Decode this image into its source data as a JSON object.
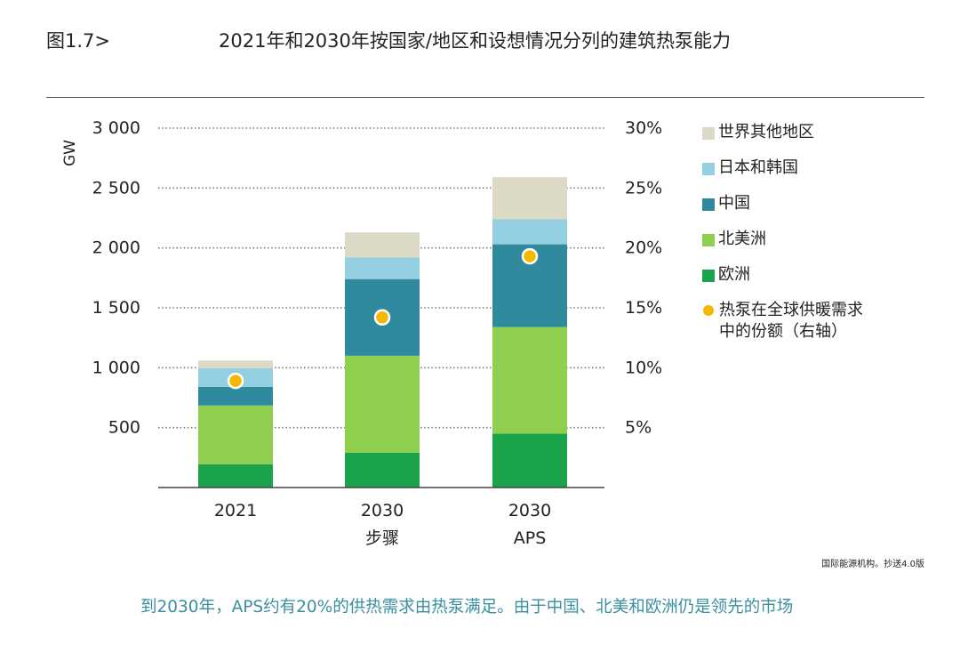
{
  "figure": {
    "number": "图1.7>",
    "title": "2021年和2030年按国家/地区和设想情况分列的建筑热泵能力",
    "source": "国际能源机构。抄送4.0版",
    "caption": "到2030年，APS约有20%的供热需求由热泵满足。由于中国、北美和欧洲仍是领先的市场"
  },
  "chart_data": {
    "type": "bar",
    "stacked": true,
    "categories": [
      "2021",
      "2030\n步骤",
      "2030\nAPS"
    ],
    "series": [
      {
        "name": "欧洲",
        "color": "#1aa34a",
        "values": [
          195,
          290,
          450
        ]
      },
      {
        "name": "北美洲",
        "color": "#8fcf4f",
        "values": [
          490,
          810,
          890
        ]
      },
      {
        "name": "中国",
        "color": "#2f8a9e",
        "values": [
          155,
          640,
          690
        ]
      },
      {
        "name": "日本和韩国",
        "color": "#93cfe0",
        "values": [
          155,
          180,
          210
        ]
      },
      {
        "name": "世界其他地区",
        "color": "#dcd9c6",
        "values": [
          65,
          210,
          350
        ]
      }
    ],
    "share": {
      "name": "热泵在全球供暖需求\n中的份额（右轴）",
      "color": "#f5b800",
      "values": [
        8.9,
        14.2,
        19.3
      ]
    },
    "ylabel": "GW",
    "ylim": [
      0,
      3000
    ],
    "y_ticks": [
      500,
      1000,
      1500,
      2000,
      2500,
      3000
    ],
    "y_tick_labels": [
      "500",
      "1 000",
      "1 500",
      "2 000",
      "2 500",
      "3 000"
    ],
    "y2lim": [
      0,
      30
    ],
    "y2_ticks": [
      5,
      10,
      15,
      20,
      25,
      30
    ],
    "y2_tick_labels": [
      "5%",
      "10%",
      "15%",
      "20%",
      "25%",
      "30%"
    ],
    "legend_order": [
      "世界其他地区",
      "日本和韩国",
      "中国",
      "北美洲",
      "欧洲"
    ],
    "grid": "dotted",
    "legend_position": "right"
  }
}
